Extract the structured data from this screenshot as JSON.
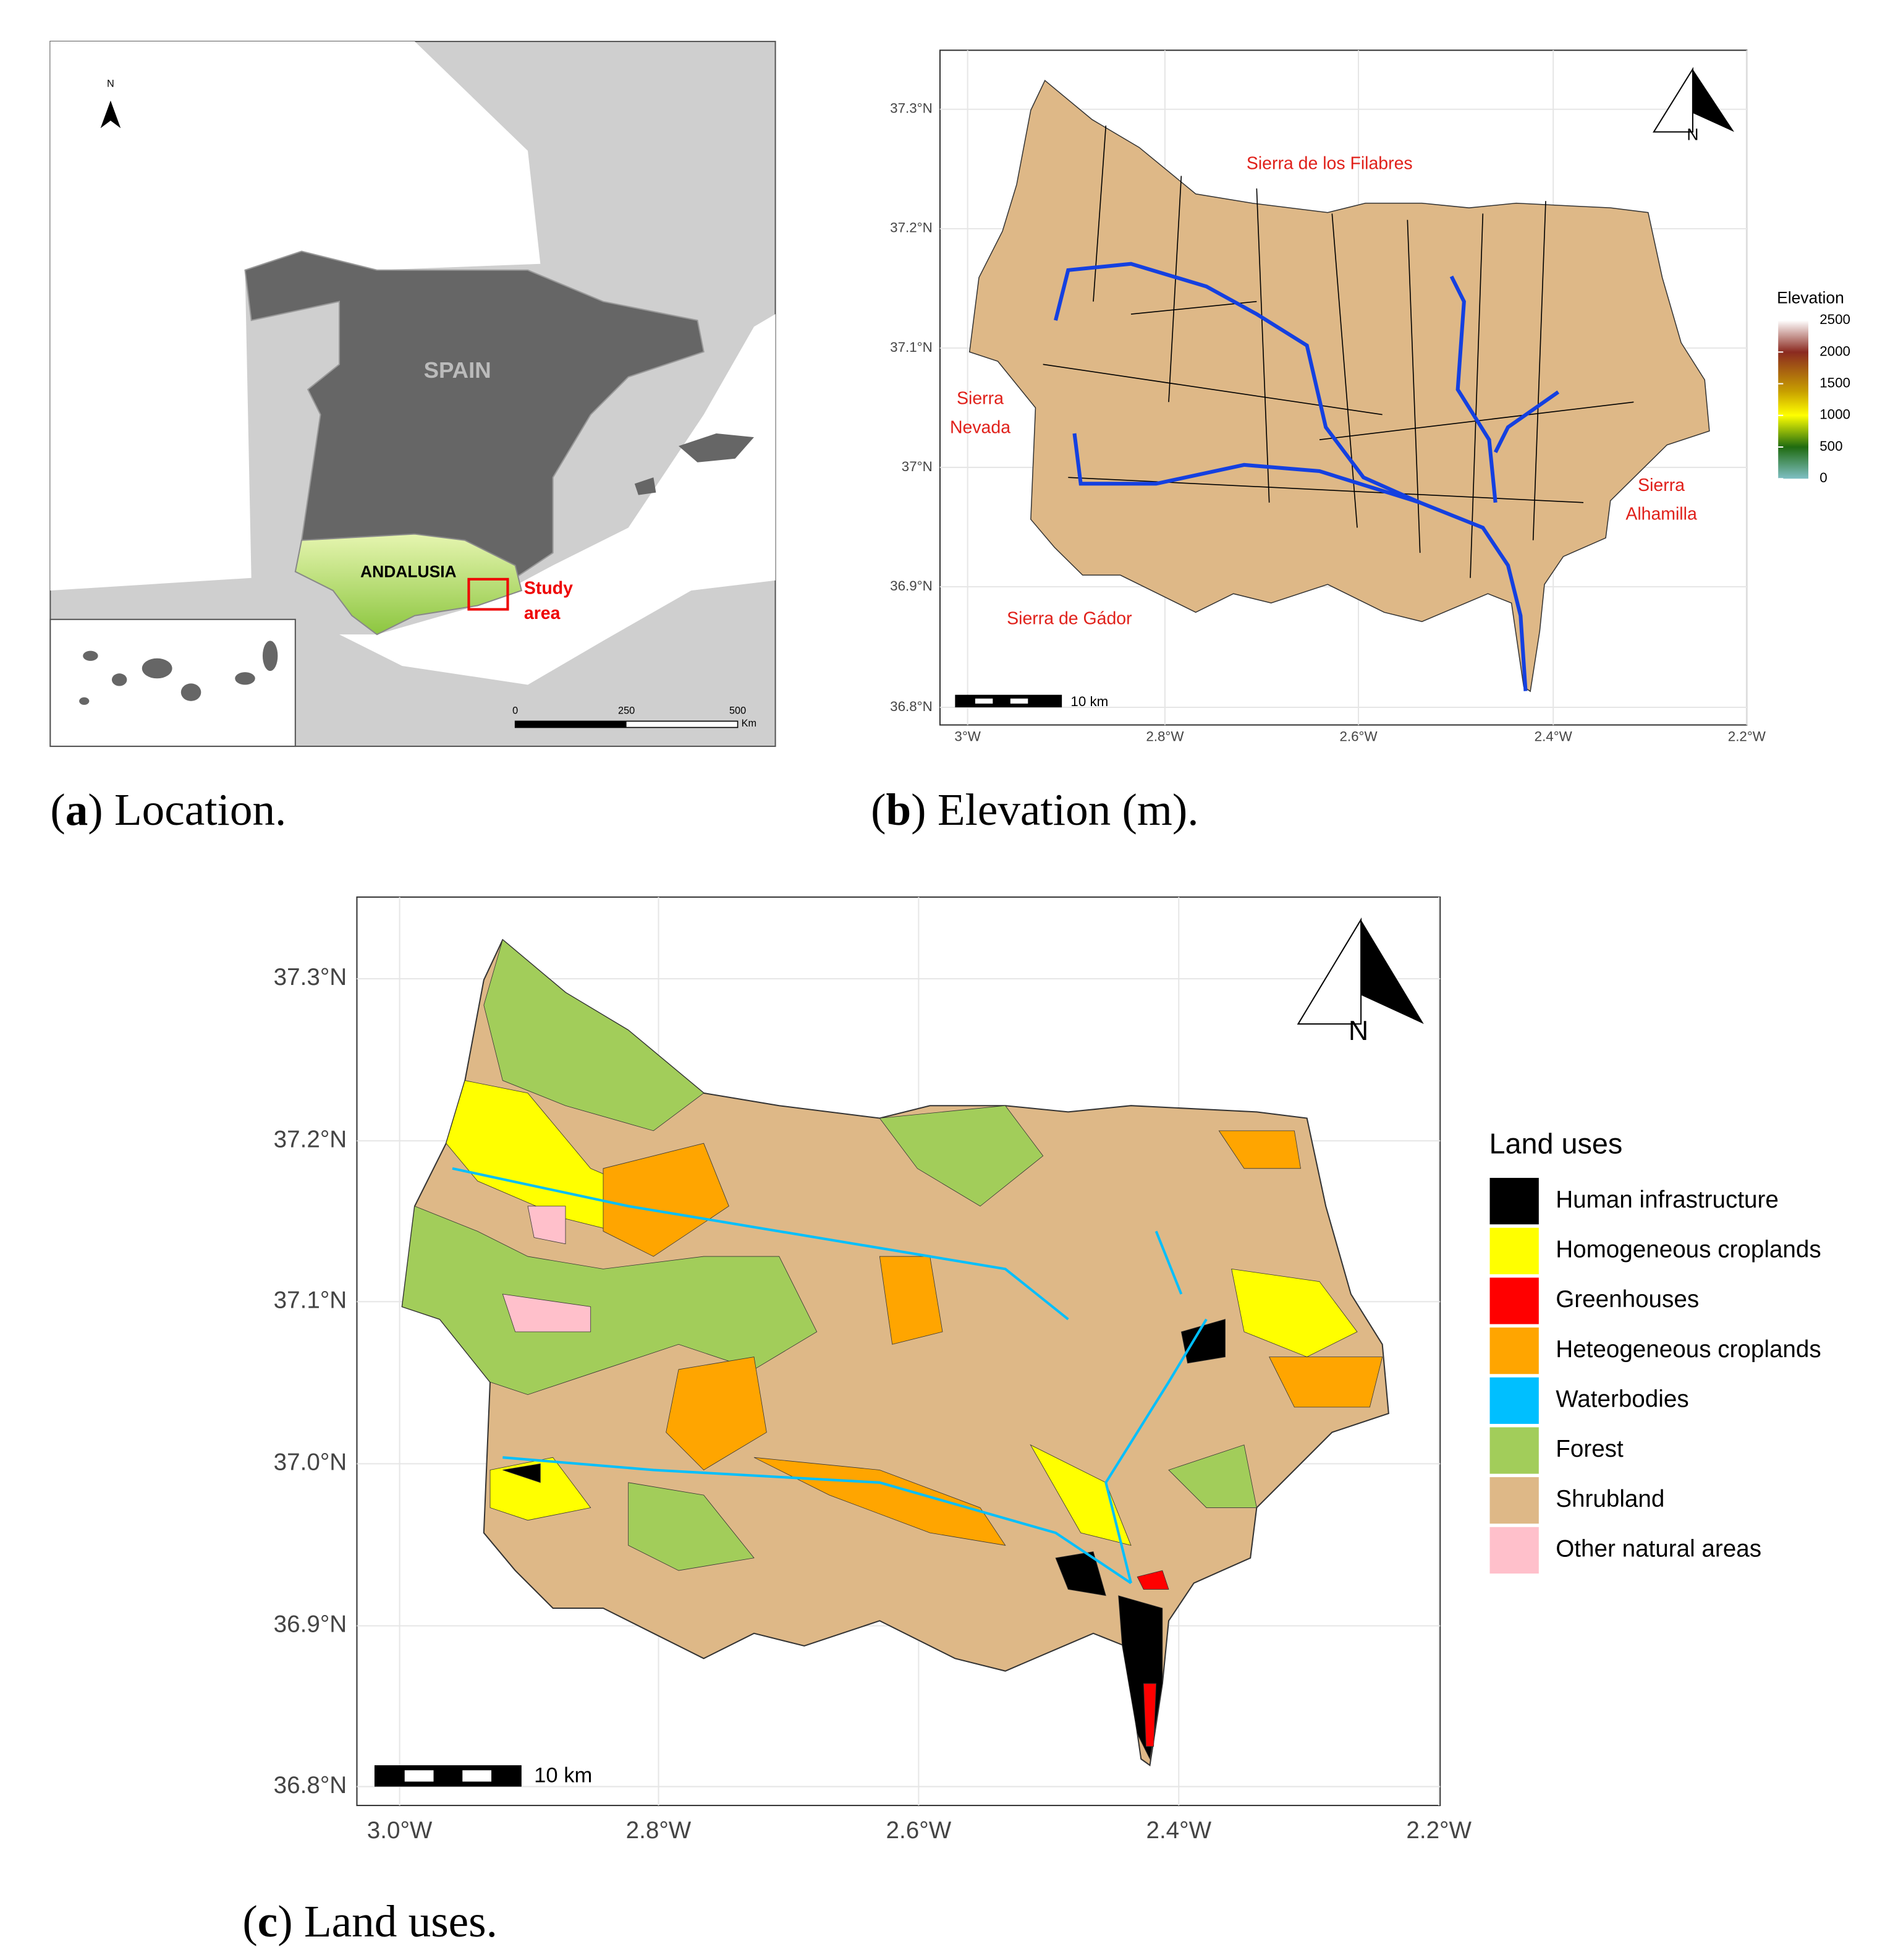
{
  "panel_a": {
    "north": "N",
    "spain": "SPAIN",
    "andalusia": "ANDALUSIA",
    "study_area": [
      "Study",
      "area"
    ],
    "scale_bar": {
      "ticks": [
        0,
        250,
        500
      ],
      "unit": "Km"
    },
    "caption": [
      "(",
      "a",
      ") Location."
    ]
  },
  "panel_b": {
    "lat_ticks": [
      "37.3°N",
      "37.2°N",
      "37.1°N",
      "37°N",
      "36.9°N",
      "36.8°N"
    ],
    "lon_ticks": [
      "3°W",
      "2.8°W",
      "2.6°W",
      "2.4°W",
      "2.2°W"
    ],
    "north": "N",
    "scale_label": "10 km",
    "places": [
      [
        "Sierra de los Filabres"
      ],
      [
        "Sierra",
        "Nevada"
      ],
      [
        "Sierra",
        "Alhamilla"
      ],
      [
        "Sierra de Gádor"
      ]
    ],
    "elevation": {
      "title": "Elevation",
      "ticks": [
        0,
        500,
        1000,
        1500,
        2000,
        2500
      ],
      "range": [
        0,
        2500
      ]
    },
    "caption": [
      "(",
      "b",
      ") Elevation (m)."
    ]
  },
  "panel_c": {
    "lat_ticks": [
      "37.3°N",
      "37.2°N",
      "37.1°N",
      "37.0°N",
      "36.9°N",
      "36.8°N"
    ],
    "lon_ticks": [
      "3.0°W",
      "2.8°W",
      "2.6°W",
      "2.4°W",
      "2.2°W"
    ],
    "north": "N",
    "scale_label": "10 km",
    "legend": {
      "title": "Land uses",
      "items": [
        {
          "name": "Human infrastructure",
          "color": "#000000"
        },
        {
          "name": "Homogeneous croplands",
          "color": "#ffff00"
        },
        {
          "name": "Greenhouses",
          "color": "#ff0000"
        },
        {
          "name": "Heteogeneous croplands",
          "color": "#ffa500"
        },
        {
          "name": "Waterbodies",
          "color": "#00bfff"
        },
        {
          "name": "Forest",
          "color": "#a2cd5a"
        },
        {
          "name": "Shrubland",
          "color": "#deb887"
        },
        {
          "name": "Other natural areas",
          "color": "#ffc0cb"
        }
      ]
    },
    "caption": [
      "(",
      "c",
      ") Land uses."
    ]
  }
}
